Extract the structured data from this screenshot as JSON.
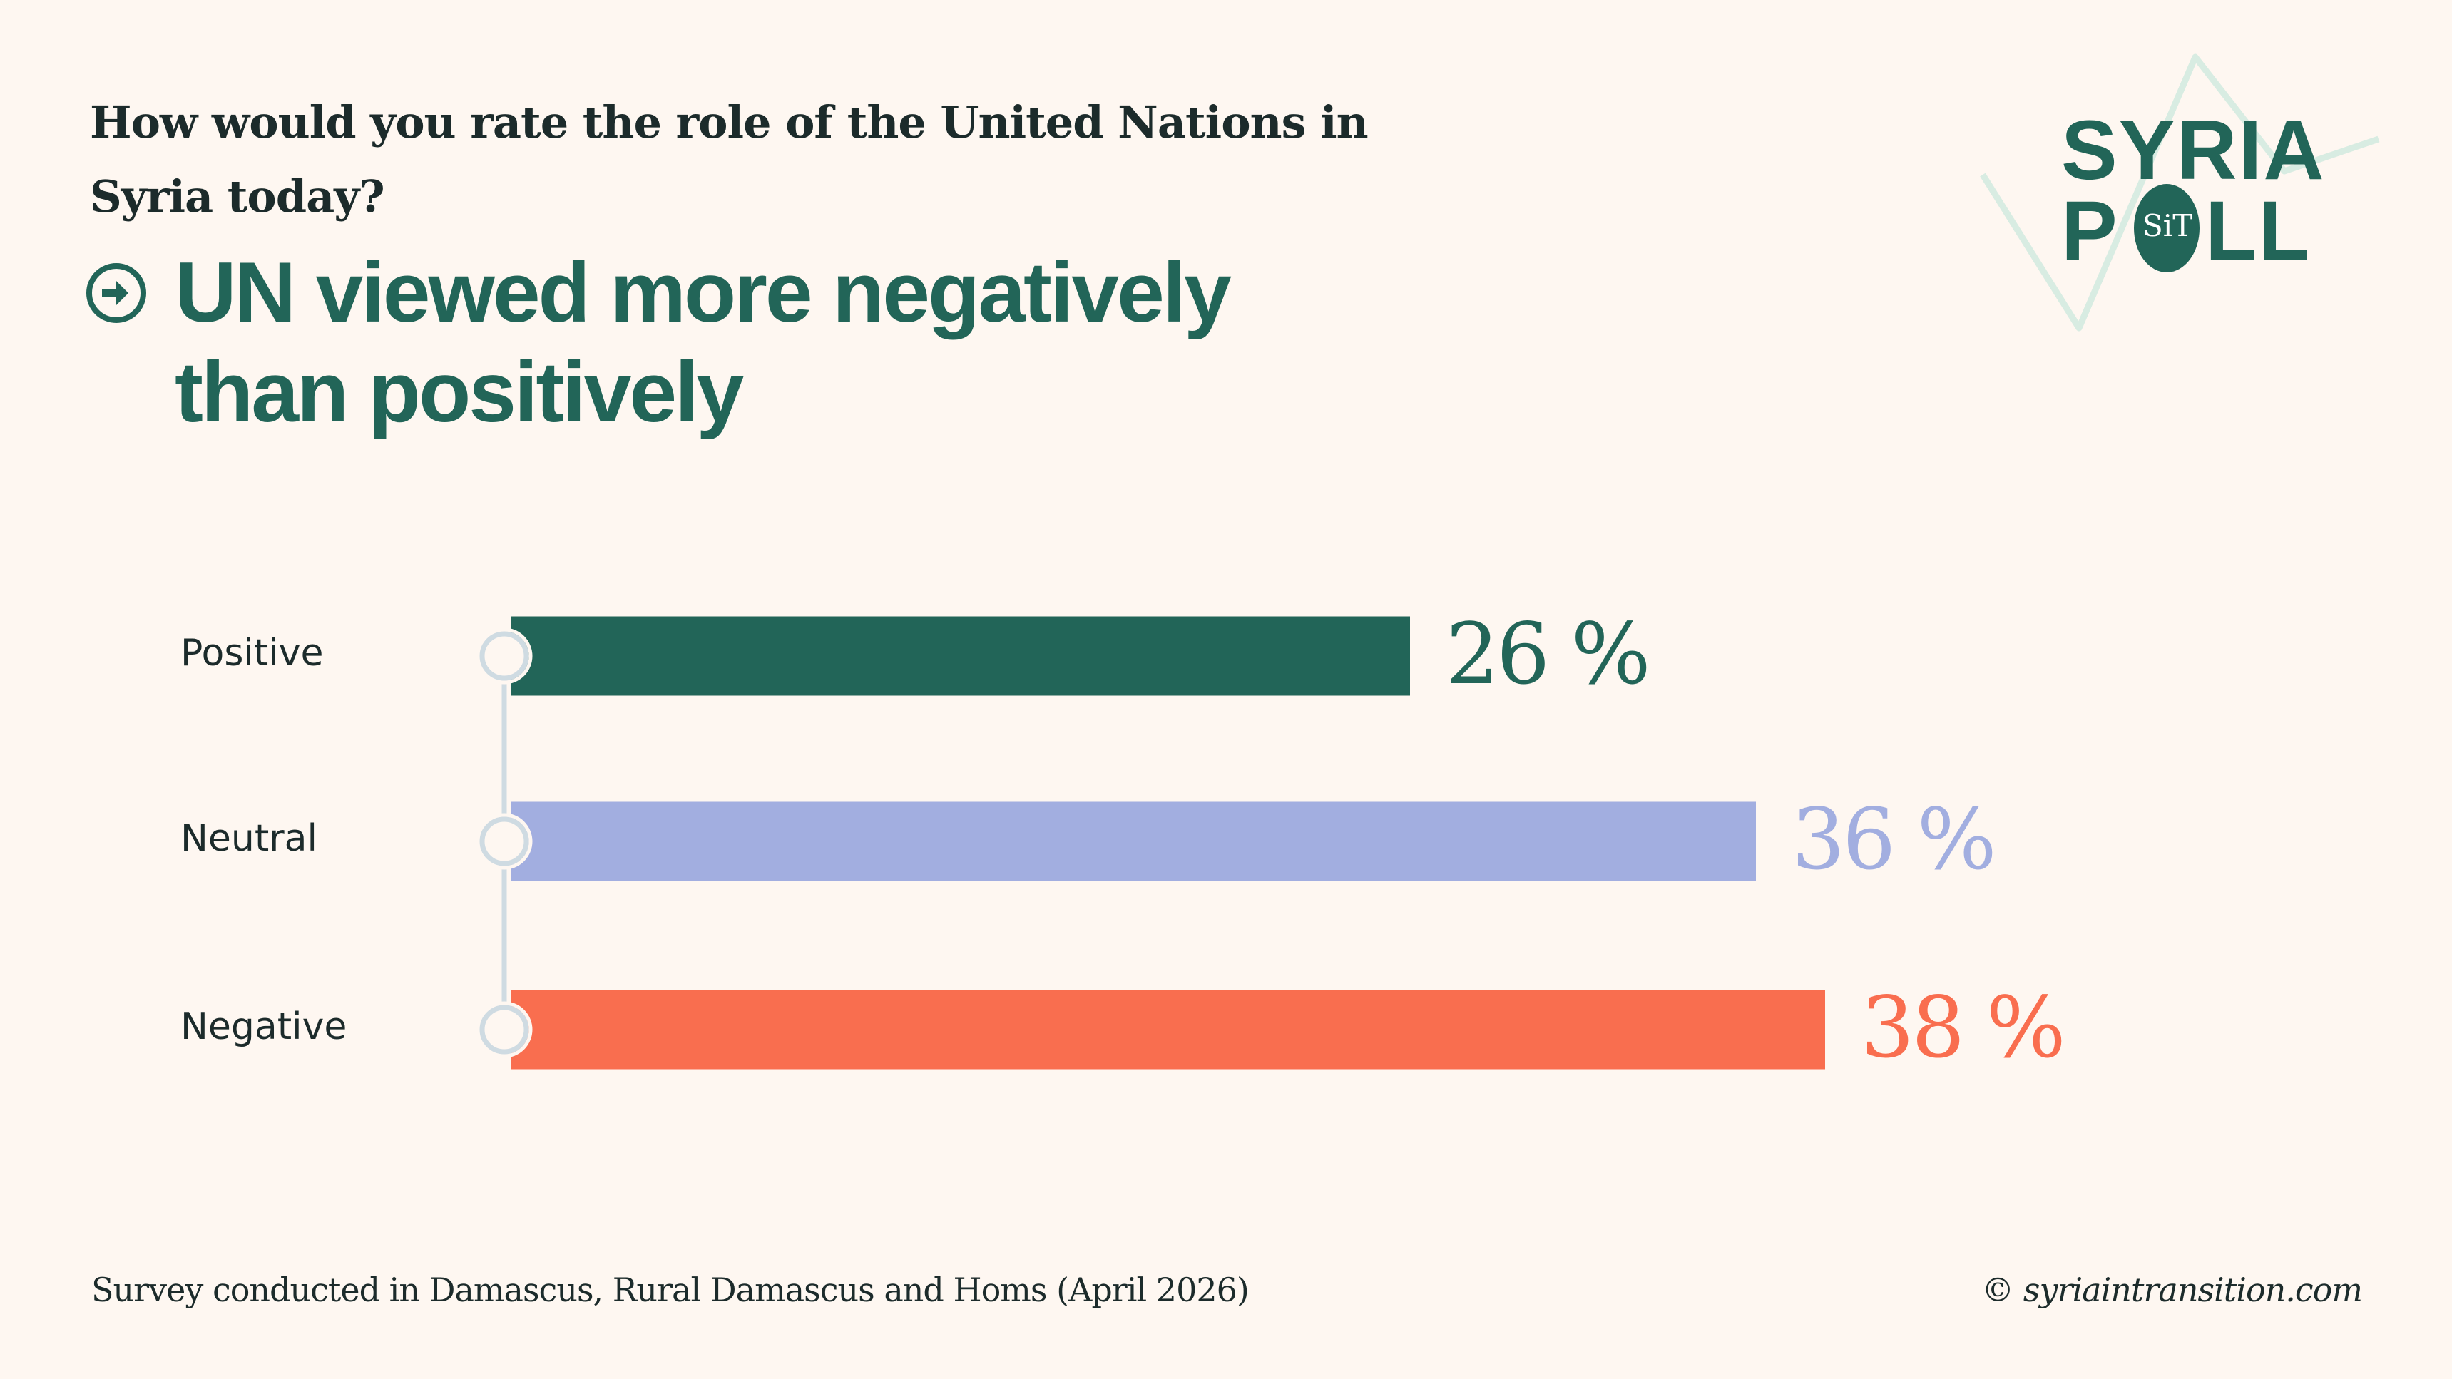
{
  "header": {
    "question": "How would you rate the role of the United Nations in Syria today?",
    "headline_icon": "arrow-right-circle-icon",
    "headline": "UN viewed more negatively than positively"
  },
  "logo": {
    "line1": "SYRIA",
    "line2_left": "P",
    "line2_badge": "SiT",
    "line2_right": "LL",
    "brand_color": "#226558",
    "zigzag_color": "#d8ece2"
  },
  "chart_data": {
    "type": "bar",
    "orientation": "horizontal",
    "title": "How would you rate the role of the United Nations in Syria today?",
    "subtitle": "UN viewed more negatively than positively",
    "xlabel": "",
    "ylabel": "",
    "unit": "%",
    "categories": [
      "Positive",
      "Neutral",
      "Negative"
    ],
    "values": [
      26,
      36,
      38
    ],
    "value_labels": [
      "26 %",
      "36 %",
      "38 %"
    ],
    "colors": [
      "#226558",
      "#a2aee0",
      "#f96e4f"
    ],
    "xlim": [
      0,
      40
    ],
    "grid": false,
    "legend": "none"
  },
  "footer": {
    "source": "Survey conducted in Damascus, Rural Damascus and Homs (April 2026)",
    "copyright": "© syriaintransition.com"
  },
  "colors": {
    "background": "#fef7f1",
    "text": "#1c2b2b",
    "accent": "#226558",
    "axis_marker": "#cfdbe2"
  }
}
